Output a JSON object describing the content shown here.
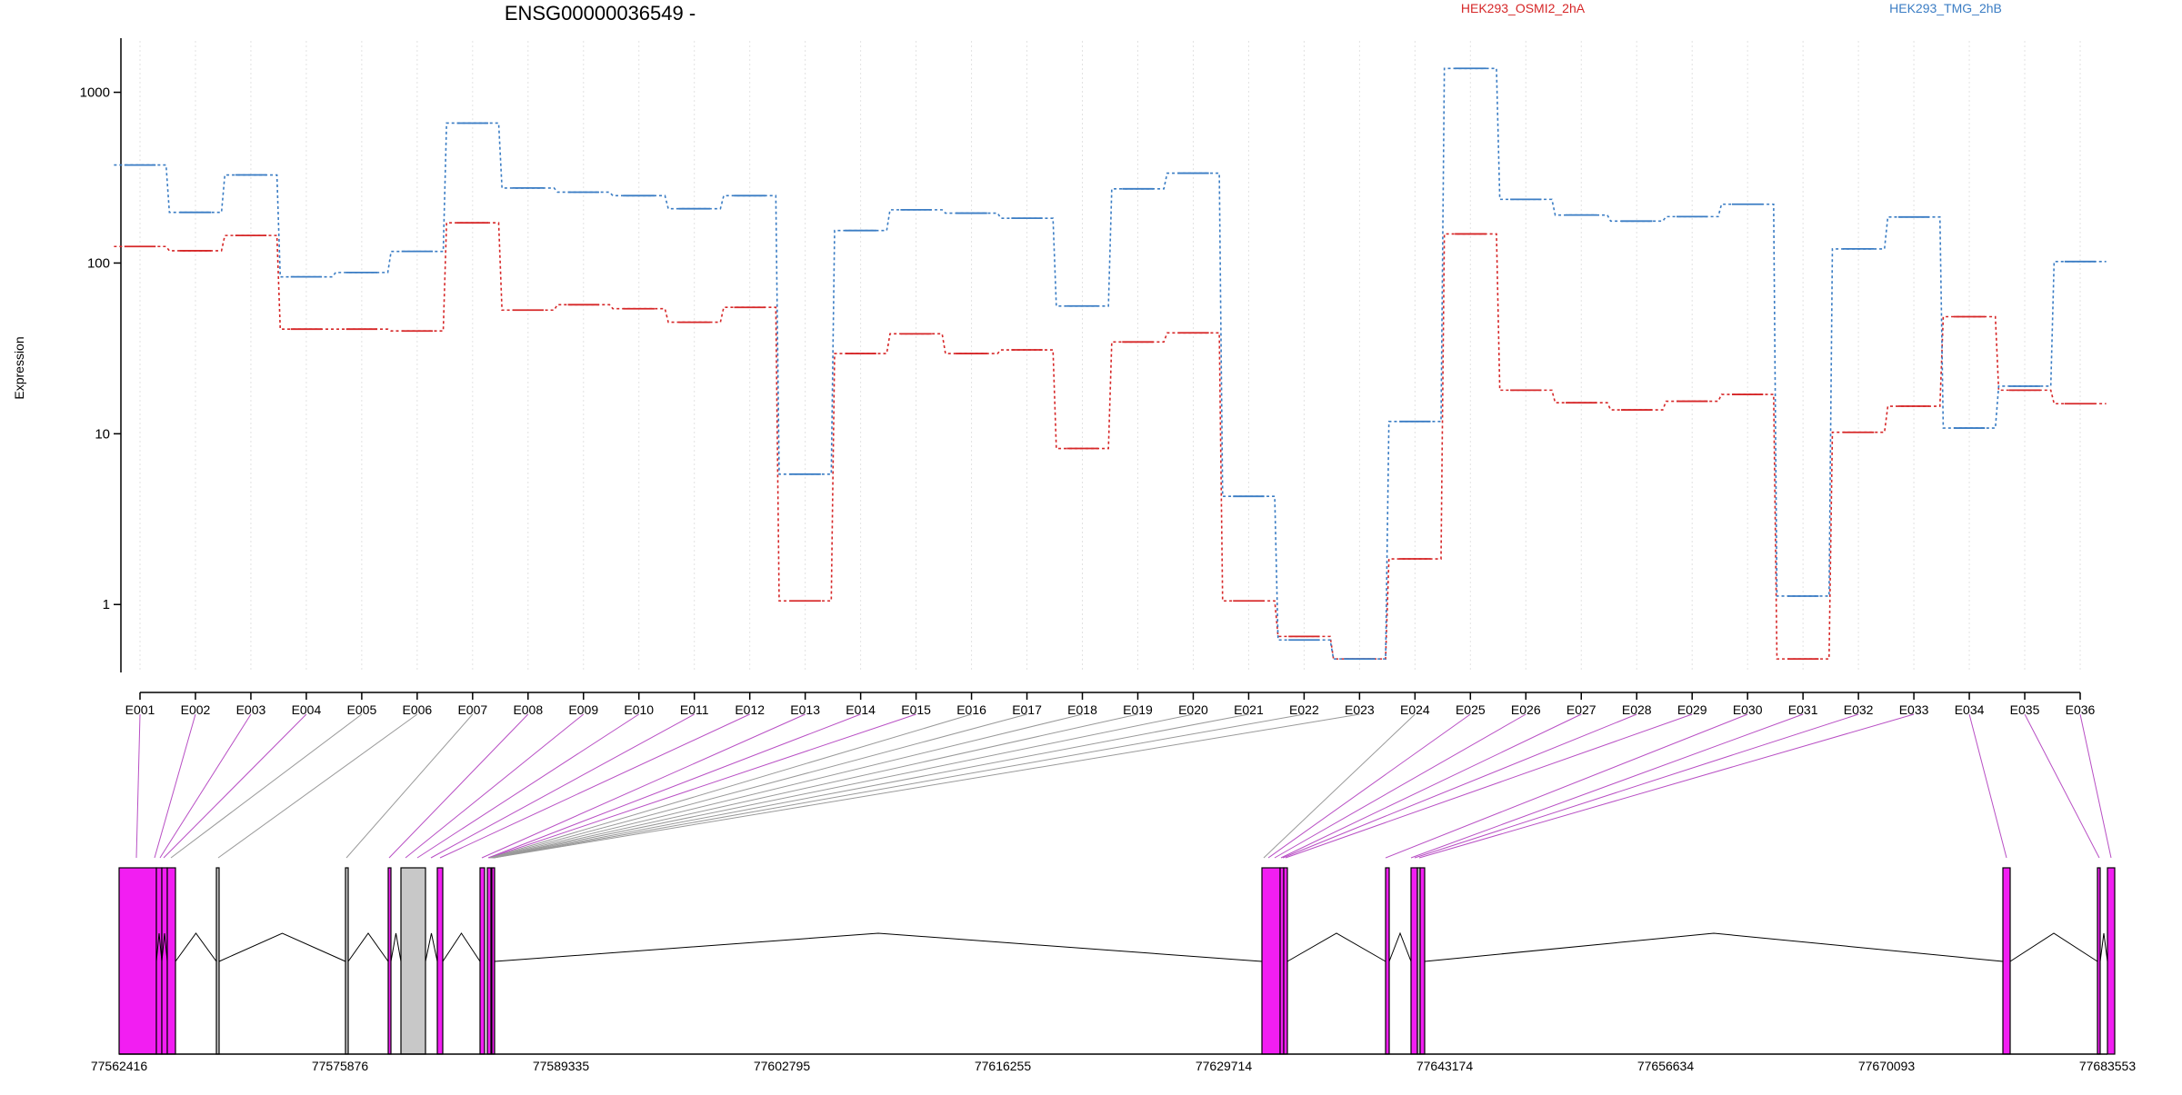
{
  "chart_data": {
    "type": "line",
    "title": "ENSG00000036549 -",
    "ylabel": "Expression",
    "xlabel": "",
    "y_scale": "log",
    "ylim": [
      0.4,
      2000
    ],
    "y_ticks": [
      1,
      10,
      100,
      1000
    ],
    "y_tick_labels": [
      "1",
      "10",
      "100",
      "1000"
    ],
    "grid": "vertical dotted per exon",
    "legend_position": "top",
    "categories": [
      "E001",
      "E002",
      "E003",
      "E004",
      "E005",
      "E006",
      "E007",
      "E008",
      "E009",
      "E010",
      "E011",
      "E012",
      "E013",
      "E014",
      "E015",
      "E016",
      "E017",
      "E018",
      "E019",
      "E020",
      "E021",
      "E022",
      "E023",
      "E024",
      "E025",
      "E026",
      "E027",
      "E028",
      "E029",
      "E030",
      "E031",
      "E032",
      "E033",
      "E034",
      "E035",
      "E036"
    ],
    "series": [
      {
        "name": "HEK293_OSMI2_2hA",
        "color": "#d62728",
        "values": [
          125,
          118,
          145,
          41,
          41,
          40,
          172,
          53,
          57,
          54,
          45,
          55,
          1.05,
          29.5,
          38.5,
          29.5,
          31,
          8.2,
          34.5,
          39,
          1.05,
          0.65,
          0.48,
          1.85,
          148,
          18,
          15.2,
          13.8,
          15.5,
          17,
          0.48,
          10.2,
          14.5,
          48.5,
          18,
          15
        ]
      },
      {
        "name": "HEK293_TMG_2hB",
        "color": "#3b7dc4",
        "values": [
          375,
          198,
          328,
          83,
          88,
          117,
          660,
          275,
          260,
          248,
          208,
          248,
          5.8,
          155,
          205,
          196,
          183,
          56,
          272,
          336,
          4.3,
          0.62,
          0.48,
          11.8,
          1380,
          236,
          191,
          176,
          187,
          221,
          1.12,
          121,
          186,
          10.8,
          19,
          102
        ]
      }
    ],
    "gene_model": {
      "genomic_axis_labels": [
        "77562416",
        "77575876",
        "77589335",
        "77602795",
        "77616255",
        "77629714",
        "77643174",
        "77656634",
        "77670093",
        "77683553"
      ],
      "colors": {
        "significant": "#f21ef2",
        "not_significant": "#c8c8c8",
        "significant_link": "#b84fc4",
        "not_significant_link": "#999999"
      },
      "exon_significant": [
        true,
        true,
        true,
        true,
        false,
        false,
        false,
        true,
        true,
        true,
        true,
        true,
        true,
        true,
        true,
        false,
        false,
        false,
        false,
        false,
        false,
        false,
        false,
        false,
        true,
        true,
        true,
        true,
        true,
        true,
        true,
        true,
        true,
        true,
        true,
        true
      ]
    }
  }
}
